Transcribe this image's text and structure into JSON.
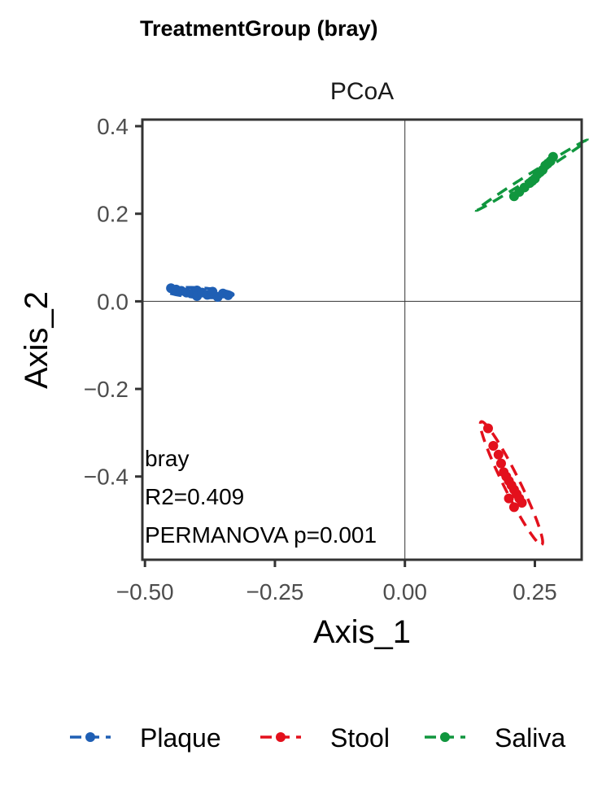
{
  "chart_data": {
    "type": "scatter",
    "suptitle": "TreatmentGroup (bray)",
    "title": "PCoA",
    "xlabel": "Axis_1",
    "ylabel": "Axis_2",
    "xlim": [
      -0.505,
      0.34
    ],
    "ylim": [
      -0.59,
      0.415
    ],
    "xticks": [
      -0.5,
      -0.25,
      0.0,
      0.25
    ],
    "xtick_labels": [
      "−0.50",
      "−0.25",
      "0.00",
      "0.25"
    ],
    "yticks": [
      0.4,
      0.2,
      0.0,
      -0.2,
      -0.4
    ],
    "ytick_labels": [
      "0.4",
      "0.2",
      "0.0",
      "−0.2",
      "−0.4"
    ],
    "reference_lines": {
      "x": 0,
      "y": 0
    },
    "annotations": [
      "bray",
      "R2=0.409",
      "PERMANOVA p=0.001"
    ],
    "legend_position": "bottom",
    "series": [
      {
        "name": "Plaque",
        "color": "#1f5fb4",
        "x": [
          -0.45,
          -0.44,
          -0.43,
          -0.42,
          -0.41,
          -0.4,
          -0.4,
          -0.39,
          -0.38,
          -0.37,
          -0.36,
          -0.35,
          -0.34
        ],
        "y": [
          0.03,
          0.027,
          0.024,
          0.02,
          0.018,
          0.025,
          0.012,
          0.02,
          0.015,
          0.022,
          0.01,
          0.018,
          0.014
        ],
        "ellipse": {
          "cx": -0.395,
          "cy": 0.02,
          "rx": 0.065,
          "ry": 0.011,
          "angle_deg": -4
        }
      },
      {
        "name": "Stool",
        "color": "#e3101c",
        "x": [
          0.16,
          0.17,
          0.18,
          0.185,
          0.19,
          0.195,
          0.2,
          0.205,
          0.21,
          0.215,
          0.22,
          0.225,
          0.21,
          0.2
        ],
        "y": [
          -0.29,
          -0.33,
          -0.35,
          -0.37,
          -0.39,
          -0.4,
          -0.41,
          -0.42,
          -0.43,
          -0.44,
          -0.45,
          -0.46,
          -0.47,
          -0.45
        ],
        "ellipse": {
          "cx": 0.205,
          "cy": -0.415,
          "rx": 0.152,
          "ry": 0.016,
          "angle_deg": -67.5
        }
      },
      {
        "name": "Saliva",
        "color": "#10963e",
        "x": [
          0.21,
          0.22,
          0.23,
          0.24,
          0.245,
          0.25,
          0.255,
          0.26,
          0.265,
          0.27,
          0.275,
          0.28,
          0.285
        ],
        "y": [
          0.24,
          0.25,
          0.26,
          0.27,
          0.275,
          0.28,
          0.29,
          0.295,
          0.3,
          0.31,
          0.315,
          0.32,
          0.33
        ],
        "ellipse": {
          "cx": 0.244,
          "cy": 0.288,
          "rx": 0.133,
          "ry": 0.005,
          "angle_deg": 37
        }
      }
    ]
  }
}
